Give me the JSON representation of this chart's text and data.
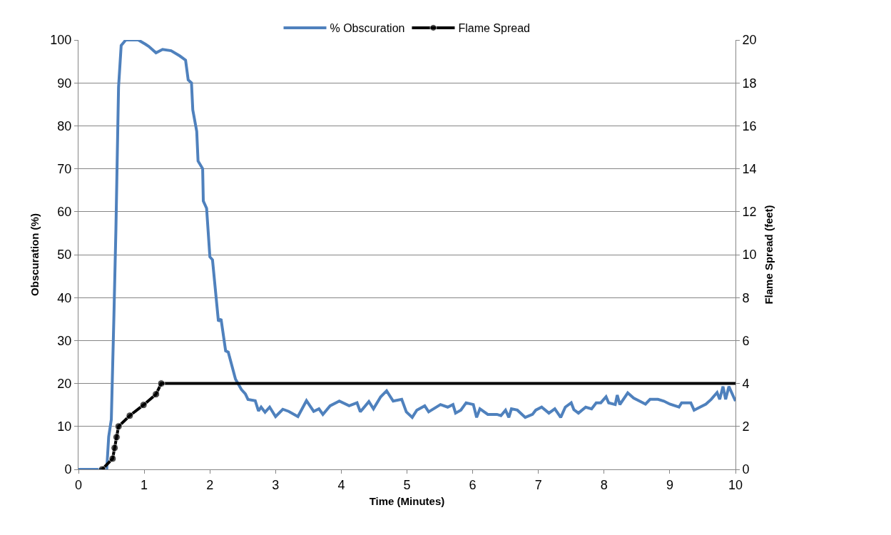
{
  "chart_data": {
    "type": "line",
    "xlabel": "Time (Minutes)",
    "ylabel": "Obscuration (%)",
    "y2label": "Flame Spread (feet)",
    "xlim": [
      0,
      10
    ],
    "xticks": [
      0,
      1,
      2,
      3,
      4,
      5,
      6,
      7,
      8,
      9,
      10
    ],
    "ylim": [
      0,
      100
    ],
    "yticks": [
      0,
      10,
      20,
      30,
      40,
      50,
      60,
      70,
      80,
      90,
      100
    ],
    "y2lim": [
      0,
      20
    ],
    "y2ticks": [
      0,
      2,
      4,
      6,
      8,
      10,
      12,
      14,
      16,
      18,
      20
    ],
    "grid": "y",
    "legend": "top",
    "series": [
      {
        "name": "% Obscuration",
        "color": "#4f81bd",
        "marker": "none",
        "x": [
          0,
          0.2,
          0.4,
          0.43,
          0.46,
          0.5,
          0.54,
          0.57,
          0.61,
          0.65,
          0.72,
          0.91,
          1.02,
          1.07,
          1.18,
          1.28,
          1.41,
          1.54,
          1.63,
          1.67,
          1.72,
          1.74,
          1.8,
          1.82,
          1.89,
          1.9,
          1.95,
          2.0,
          2.04,
          2.13,
          2.17,
          2.24,
          2.28,
          2.39,
          2.48,
          2.54,
          2.58,
          2.69,
          2.74,
          2.78,
          2.84,
          2.91,
          3.0,
          3.11,
          3.2,
          3.34,
          3.47,
          3.58,
          3.66,
          3.72,
          3.83,
          3.97,
          4.12,
          4.24,
          4.29,
          4.42,
          4.49,
          4.6,
          4.69,
          4.79,
          4.92,
          4.99,
          5.08,
          5.15,
          5.27,
          5.33,
          5.51,
          5.62,
          5.7,
          5.74,
          5.82,
          5.9,
          6.01,
          6.06,
          6.11,
          6.23,
          6.37,
          6.43,
          6.5,
          6.55,
          6.59,
          6.68,
          6.8,
          6.91,
          6.96,
          7.05,
          7.16,
          7.25,
          7.34,
          7.41,
          7.5,
          7.54,
          7.61,
          7.72,
          7.81,
          7.88,
          7.95,
          8.03,
          8.07,
          8.17,
          8.2,
          8.24,
          8.36,
          8.45,
          8.54,
          8.63,
          8.7,
          8.82,
          8.91,
          9.0,
          9.14,
          9.18,
          9.32,
          9.37,
          9.46,
          9.55,
          9.63,
          9.72,
          9.76,
          9.81,
          9.85,
          9.9,
          10.0
        ],
        "values": [
          0,
          0,
          0,
          0,
          7.6,
          11.6,
          36,
          56,
          89,
          98.7,
          100,
          100,
          99,
          98.5,
          97,
          97.8,
          97.5,
          96.3,
          95.3,
          90.7,
          90,
          83.7,
          78.7,
          71.8,
          70,
          62.5,
          60.8,
          49.5,
          48.8,
          34.5,
          35,
          27.6,
          27.3,
          21,
          18.6,
          17.6,
          16.3,
          16,
          13.6,
          14.5,
          13.3,
          14.5,
          12.3,
          14,
          13.5,
          12.3,
          16,
          13.5,
          14.1,
          12.8,
          14.8,
          15.9,
          14.8,
          15.5,
          13.4,
          15.8,
          14.1,
          16.9,
          18.3,
          15.9,
          16.3,
          13.4,
          12.1,
          13.8,
          14.8,
          13.4,
          15.1,
          14.5,
          15.1,
          13.1,
          13.8,
          15.5,
          15.1,
          12.1,
          14.1,
          12.8,
          12.8,
          12.5,
          13.8,
          12.1,
          14.1,
          13.8,
          12.1,
          12.8,
          13.8,
          14.5,
          13.1,
          14.1,
          12.1,
          14.5,
          15.5,
          13.9,
          13.1,
          14.5,
          14.1,
          15.5,
          15.5,
          16.9,
          15.5,
          15.1,
          17.3,
          15.1,
          17.8,
          16.6,
          15.9,
          15.2,
          16.3,
          16.3,
          15.9,
          15.2,
          14.5,
          15.5,
          15.5,
          13.8,
          14.5,
          15.2,
          16.3,
          17.9,
          16.3,
          19.3,
          16.3,
          19.3,
          15.9
        ]
      },
      {
        "name": "Flame Spread",
        "color": "#000000",
        "marker": "circle",
        "axis": "y2",
        "x": [
          0.36,
          0.52,
          0.55,
          0.58,
          0.61,
          0.78,
          0.99,
          1.18,
          1.26,
          10
        ],
        "values": [
          0,
          0.5,
          1,
          1.5,
          2,
          2.5,
          3,
          3.5,
          4,
          4
        ]
      }
    ]
  }
}
